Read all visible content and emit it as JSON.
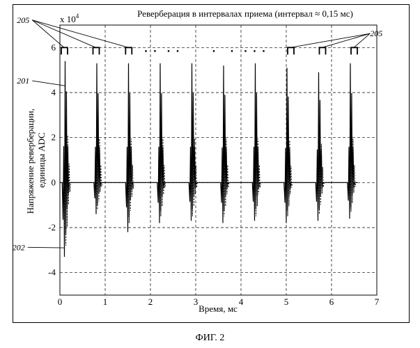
{
  "figure_caption": "ФИГ. 2",
  "chart_data": {
    "type": "line",
    "title": "Реверберация в интервалах приема (интервал ≈ 0,15 мс)",
    "xlabel": "Время, мс",
    "ylabel": "Напряжение реверберации, единицы ADC",
    "y_multiplier_base": "x 10",
    "y_multiplier_exp": "4",
    "xlim": [
      0,
      7
    ],
    "ylim": [
      -5,
      7
    ],
    "x_ticks": [
      "0",
      "1",
      "2",
      "3",
      "4",
      "5",
      "6",
      "7"
    ],
    "y_ticks": [
      "-4",
      "-2",
      "0",
      "2",
      "4",
      "6"
    ],
    "x_tick_values": [
      0,
      1,
      2,
      3,
      4,
      5,
      6,
      7
    ],
    "y_tick_values": [
      -4,
      -2,
      0,
      2,
      4,
      6
    ],
    "grid": true,
    "pulse_centers": [
      0.12,
      0.82,
      1.52,
      2.22,
      2.92,
      3.62,
      4.32,
      5.02,
      5.72,
      6.42
    ],
    "pulse_peaks_solid": [
      5.4,
      5.3,
      5.3,
      5.3,
      5.3,
      5.2,
      5.3,
      5.1,
      4.9,
      5.3
    ],
    "pulse_troughs_solid": [
      -3.3,
      -1.4,
      -2.2,
      -1.8,
      -1.7,
      -1.8,
      -1.7,
      -1.8,
      -1.7,
      -1.6
    ],
    "pulse_peaks_dashed": [
      2.8,
      2.6,
      2.6,
      2.6,
      2.6,
      2.6,
      2.6,
      2.5,
      2.3,
      2.6
    ],
    "pulse_troughs_dashed": [
      -2.8,
      -1.2,
      -1.8,
      -1.5,
      -1.5,
      -1.5,
      -1.5,
      -1.5,
      -1.4,
      -1.3
    ],
    "interval_markers_x": [
      0.0,
      0.7,
      1.42,
      5.0,
      5.7,
      6.4
    ],
    "interval_dots_x": [
      1.9,
      2.1,
      2.4,
      2.6,
      3.4,
      3.8,
      4.1,
      4.3,
      4.5
    ],
    "interval_marker_y": 6.0,
    "annotations": [
      {
        "text": "205",
        "x": -0.95,
        "y": 7.1
      },
      {
        "text": "201",
        "x": -0.95,
        "y": 4.4
      },
      {
        "text": "202",
        "x": -1.05,
        "y": -3.0
      },
      {
        "text": "205",
        "x": 6.85,
        "y": 6.5
      }
    ]
  }
}
